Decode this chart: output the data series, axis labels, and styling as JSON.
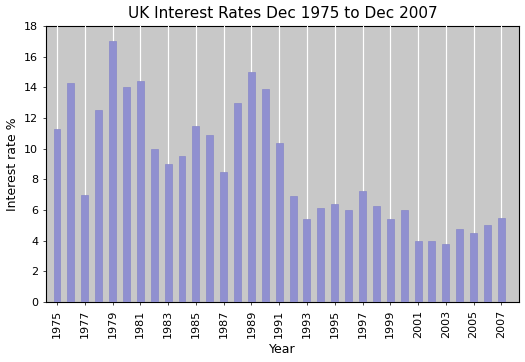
{
  "title": "UK Interest Rates Dec 1975 to Dec 2007",
  "xlabel": "Year",
  "ylabel": "Interest rate %",
  "years": [
    1975,
    1976,
    1977,
    1978,
    1979,
    1980,
    1981,
    1982,
    1983,
    1984,
    1985,
    1986,
    1987,
    1988,
    1989,
    1990,
    1991,
    1992,
    1993,
    1994,
    1995,
    1996,
    1997,
    1998,
    1999,
    2000,
    2001,
    2002,
    2003,
    2004,
    2005,
    2006,
    2007
  ],
  "values": [
    11.25,
    14.25,
    7.0,
    12.5,
    17.0,
    14.0,
    14.375,
    10.0,
    9.0,
    9.5,
    11.5,
    10.875,
    8.5,
    13.0,
    15.0,
    13.875,
    10.375,
    6.875,
    5.375,
    6.125,
    6.375,
    6.0,
    7.25,
    6.25,
    5.375,
    6.0,
    4.0,
    4.0,
    3.75,
    4.75,
    4.5,
    5.0,
    5.5
  ],
  "bar_color": "#9090d0",
  "bar_edge_color": "#8888c8",
  "plot_bg_color": "#c8c8c8",
  "ylim": [
    0,
    18
  ],
  "yticks": [
    0,
    2,
    4,
    6,
    8,
    10,
    12,
    14,
    16,
    18
  ],
  "tick_labels": [
    "1975",
    "1977",
    "1979",
    "1981",
    "1983",
    "1985",
    "1987",
    "1989",
    "1991",
    "1993",
    "1995",
    "1997",
    "1999",
    "2001",
    "2003",
    "2005",
    "2007"
  ],
  "tick_positions": [
    1975,
    1977,
    1979,
    1981,
    1983,
    1985,
    1987,
    1989,
    1991,
    1993,
    1995,
    1997,
    1999,
    2001,
    2003,
    2005,
    2007
  ],
  "title_fontsize": 11,
  "axis_label_fontsize": 9,
  "tick_fontsize": 8
}
